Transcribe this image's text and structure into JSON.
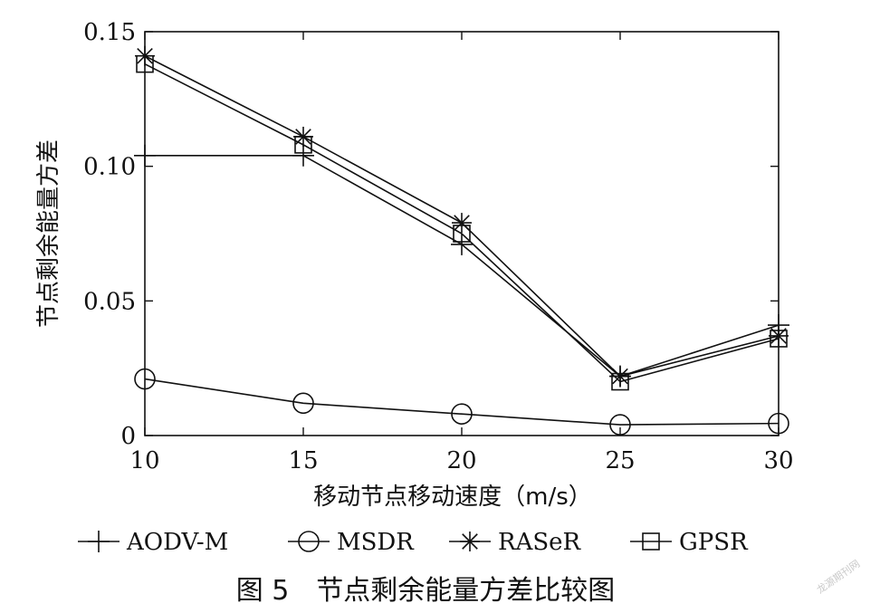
{
  "chart_data": {
    "type": "line",
    "x": [
      10,
      15,
      20,
      25,
      30
    ],
    "series": [
      {
        "name": "AODV-M",
        "marker": "plus",
        "values": [
          0.104,
          0.104,
          0.071,
          0.022,
          0.041
        ]
      },
      {
        "name": "MSDR",
        "marker": "circle",
        "values": [
          0.021,
          0.012,
          0.008,
          0.004,
          0.0045
        ]
      },
      {
        "name": "RASeR",
        "marker": "asterisk",
        "values": [
          0.141,
          0.111,
          0.079,
          0.022,
          0.037
        ]
      },
      {
        "name": "GPSR",
        "marker": "square",
        "values": [
          0.138,
          0.108,
          0.075,
          0.02,
          0.036
        ]
      }
    ],
    "xlabel": "移动节点移动速度（m/s）",
    "ylabel": "节点剩余能量方差",
    "xlim": [
      10,
      30
    ],
    "ylim": [
      0,
      0.15
    ],
    "xticks": [
      "10",
      "15",
      "20",
      "25",
      "30"
    ],
    "yticks": [
      "0",
      "0.05",
      "0.10",
      "0.15"
    ],
    "yticks_values": [
      0,
      0.05,
      0.1,
      0.15
    ],
    "grid": false,
    "legend_position": "bottom",
    "line_color": "#111111"
  },
  "caption": "图 5　节点剩余能量方差比较图",
  "watermark": "龙源期刊网"
}
